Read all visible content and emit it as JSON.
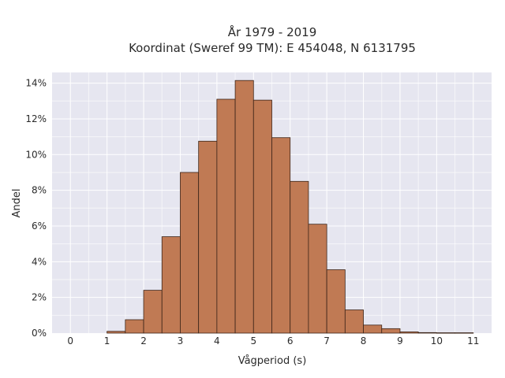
{
  "chart_data": {
    "type": "bar",
    "title_lines": [
      "År 1979 - 2019",
      "Koordinat (Sweref 99 TM): E 454048, N 6131795"
    ],
    "xlabel": "Vågperiod (s)",
    "ylabel": "Andel",
    "bin_width": 0.5,
    "bin_starts": [
      1.0,
      1.5,
      2.0,
      2.5,
      3.0,
      3.5,
      4.0,
      4.5,
      5.0,
      5.5,
      6.0,
      6.5,
      7.0,
      7.5,
      8.0,
      8.5,
      9.0,
      9.5,
      10.0,
      10.5
    ],
    "values": [
      0.1,
      0.75,
      2.4,
      5.4,
      9.0,
      10.75,
      13.1,
      14.15,
      13.05,
      10.95,
      8.5,
      6.1,
      3.55,
      1.3,
      0.45,
      0.25,
      0.07,
      0.03,
      0.02,
      0.02
    ],
    "xlim": [
      -0.5,
      11.5
    ],
    "ylim": [
      0,
      14.6
    ],
    "xticks": [
      0,
      1,
      2,
      3,
      4,
      5,
      6,
      7,
      8,
      9,
      10,
      11
    ],
    "yticks": [
      0,
      2,
      4,
      6,
      8,
      10,
      12,
      14
    ],
    "ytick_suffix": "%",
    "grid": true,
    "colors": {
      "bar": "#c07a54",
      "bar_edge": "#3b2418",
      "plot_bg": "#e6e6f0",
      "grid": "#ffffff"
    }
  }
}
